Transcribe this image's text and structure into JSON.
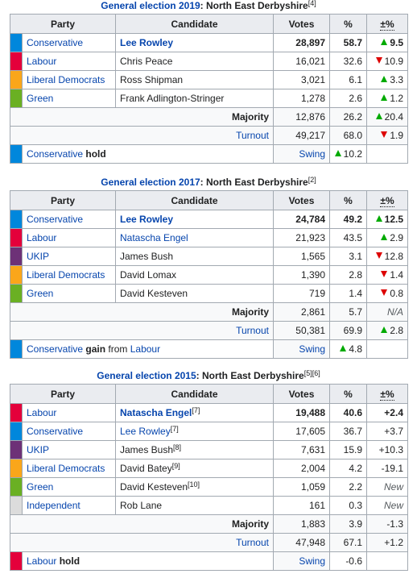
{
  "elections": [
    {
      "caption": {
        "title": "General election 2019",
        "suffix": ": North East Derbyshire",
        "refs": [
          "[4]"
        ]
      },
      "headers": [
        "Party",
        "Candidate",
        "Votes",
        "%",
        "±%"
      ],
      "rows": [
        {
          "party": "Conservative",
          "color": "#0087DC",
          "candidate": "Lee Rowley",
          "candidate_link": true,
          "votes": "28,897",
          "percent": "58.7",
          "change": "9.5",
          "change_dir": "up",
          "winner": true
        },
        {
          "party": "Labour",
          "color": "#E4003B",
          "candidate": "Chris Peace",
          "votes": "16,021",
          "percent": "32.6",
          "change": "10.9",
          "change_dir": "down"
        },
        {
          "party": "Liberal Democrats",
          "color": "#FAA61A",
          "candidate": "Ross Shipman",
          "votes": "3,021",
          "percent": "6.1",
          "change": "3.3",
          "change_dir": "up"
        },
        {
          "party": "Green",
          "color": "#6AB023",
          "candidate": "Frank Adlington-Stringer",
          "votes": "1,278",
          "percent": "2.6",
          "change": "1.2",
          "change_dir": "up"
        }
      ],
      "majority": {
        "label": "Majority",
        "votes": "12,876",
        "percent": "26.2",
        "change": "20.4",
        "change_dir": "up"
      },
      "turnout": {
        "label": "Turnout",
        "votes": "49,217",
        "percent": "68.0",
        "change": "1.9",
        "change_dir": "down"
      },
      "result": {
        "color": "#0087DC",
        "party": "Conservative",
        "outcome": "hold",
        "swing_label": "Swing",
        "swing": "10.2",
        "swing_dir": "up"
      }
    },
    {
      "caption": {
        "title": "General election 2017",
        "suffix": ": North East Derbyshire",
        "refs": [
          "[2]"
        ]
      },
      "headers": [
        "Party",
        "Candidate",
        "Votes",
        "%",
        "±%"
      ],
      "rows": [
        {
          "party": "Conservative",
          "color": "#0087DC",
          "candidate": "Lee Rowley",
          "candidate_link": true,
          "votes": "24,784",
          "percent": "49.2",
          "change": "12.5",
          "change_dir": "up",
          "winner": true
        },
        {
          "party": "Labour",
          "color": "#E4003B",
          "candidate": "Natascha Engel",
          "candidate_link": true,
          "votes": "21,923",
          "percent": "43.5",
          "change": "2.9",
          "change_dir": "up"
        },
        {
          "party": "UKIP",
          "color": "#6D3177",
          "candidate": "James Bush",
          "votes": "1,565",
          "percent": "3.1",
          "change": "12.8",
          "change_dir": "down"
        },
        {
          "party": "Liberal Democrats",
          "color": "#FAA61A",
          "candidate": "David Lomax",
          "votes": "1,390",
          "percent": "2.8",
          "change": "1.4",
          "change_dir": "down"
        },
        {
          "party": "Green",
          "color": "#6AB023",
          "candidate": "David Kesteven",
          "votes": "719",
          "percent": "1.4",
          "change": "0.8",
          "change_dir": "down"
        }
      ],
      "majority": {
        "label": "Majority",
        "votes": "2,861",
        "percent": "5.7",
        "change": "N/A",
        "change_italic": true
      },
      "turnout": {
        "label": "Turnout",
        "votes": "50,381",
        "percent": "69.9",
        "change": "2.8",
        "change_dir": "up"
      },
      "result": {
        "color": "#0087DC",
        "party": "Conservative",
        "outcome": "gain",
        "from_label": "from",
        "from_party": "Labour",
        "swing_label": "Swing",
        "swing": "4.8",
        "swing_dir": "up"
      }
    },
    {
      "caption": {
        "title": "General election 2015",
        "suffix": ": North East Derbyshire",
        "refs": [
          "[5]",
          "[6]"
        ]
      },
      "headers": [
        "Party",
        "Candidate",
        "Votes",
        "%",
        "±%"
      ],
      "rows": [
        {
          "party": "Labour",
          "color": "#E4003B",
          "candidate": "Natascha Engel",
          "candidate_link": true,
          "candidate_ref": "[7]",
          "votes": "19,488",
          "percent": "40.6",
          "change": "+2.4",
          "winner": true
        },
        {
          "party": "Conservative",
          "color": "#0087DC",
          "candidate": "Lee Rowley",
          "candidate_link": true,
          "candidate_ref": "[7]",
          "votes": "17,605",
          "percent": "36.7",
          "change": "+3.7"
        },
        {
          "party": "UKIP",
          "color": "#6D3177",
          "candidate": "James Bush",
          "candidate_ref": "[8]",
          "votes": "7,631",
          "percent": "15.9",
          "change": "+10.3"
        },
        {
          "party": "Liberal Democrats",
          "color": "#FAA61A",
          "candidate": "David Batey",
          "candidate_ref": "[9]",
          "votes": "2,004",
          "percent": "4.2",
          "change": "-19.1"
        },
        {
          "party": "Green",
          "color": "#6AB023",
          "candidate": "David Kesteven",
          "candidate_ref": "[10]",
          "votes": "1,059",
          "percent": "2.2",
          "change": "New",
          "change_italic": true
        },
        {
          "party": "Independent",
          "color": "#DCDCDC",
          "candidate": "Rob Lane",
          "votes": "161",
          "percent": "0.3",
          "change": "New",
          "change_italic": true
        }
      ],
      "majority": {
        "label": "Majority",
        "votes": "1,883",
        "percent": "3.9",
        "change": "-1.3"
      },
      "turnout": {
        "label": "Turnout",
        "votes": "47,948",
        "percent": "67.1",
        "change": "+1.2"
      },
      "result": {
        "color": "#E4003B",
        "party": "Labour",
        "outcome": "hold",
        "swing_label": "Swing",
        "swing": "-0.6"
      }
    }
  ]
}
